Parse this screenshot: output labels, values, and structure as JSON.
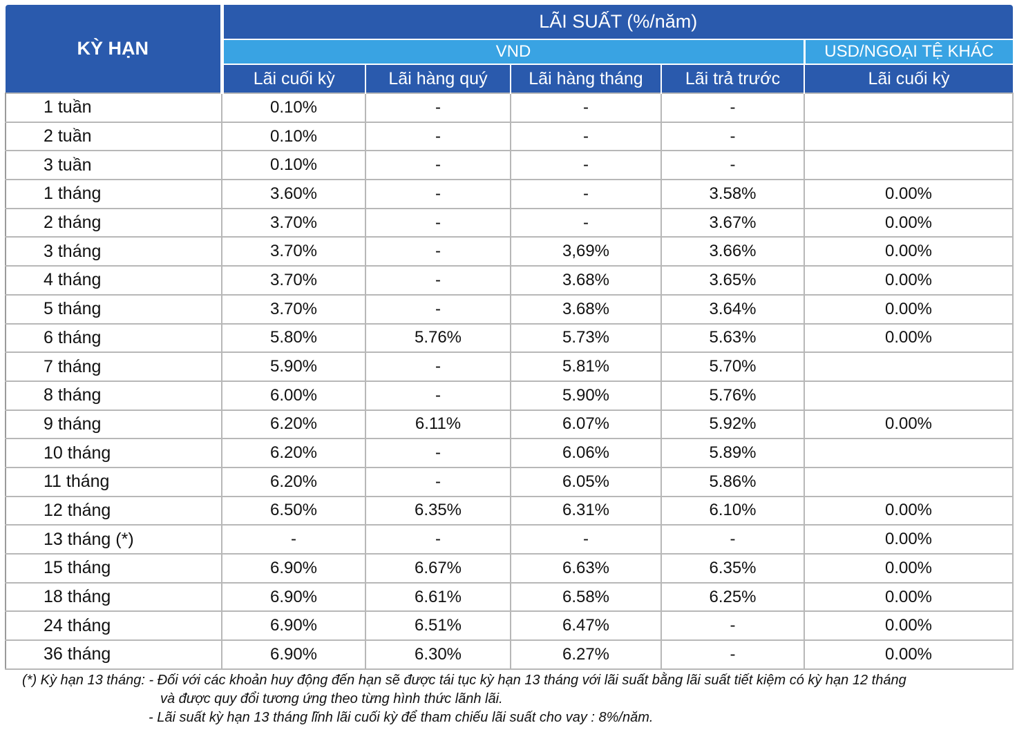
{
  "header": {
    "term_label": "KỲ HẠN",
    "rate_label": "LÃI SUẤT (%/năm)",
    "vnd_label": "VND",
    "usd_label": "USD/NGOẠI TỆ KHÁC",
    "columns": [
      "Lãi cuối kỳ",
      "Lãi hàng quý",
      "Lãi hàng tháng",
      "Lãi trả trước",
      "Lãi cuối kỳ"
    ]
  },
  "rows": [
    {
      "term": "1 tuần",
      "values": [
        "0.10%",
        "-",
        "-",
        "-",
        ""
      ]
    },
    {
      "term": "2 tuần",
      "values": [
        "0.10%",
        "-",
        "-",
        "-",
        ""
      ]
    },
    {
      "term": "3 tuần",
      "values": [
        "0.10%",
        "-",
        "-",
        "-",
        ""
      ]
    },
    {
      "term": "1 tháng",
      "values": [
        "3.60%",
        "-",
        "-",
        "3.58%",
        "0.00%"
      ]
    },
    {
      "term": "2 tháng",
      "values": [
        "3.70%",
        "-",
        "-",
        "3.67%",
        "0.00%"
      ]
    },
    {
      "term": "3 tháng",
      "values": [
        "3.70%",
        "-",
        "3,69%",
        "3.66%",
        "0.00%"
      ]
    },
    {
      "term": "4 tháng",
      "values": [
        "3.70%",
        "-",
        "3.68%",
        "3.65%",
        "0.00%"
      ]
    },
    {
      "term": "5 tháng",
      "values": [
        "3.70%",
        "-",
        "3.68%",
        "3.64%",
        "0.00%"
      ]
    },
    {
      "term": "6 tháng",
      "values": [
        "5.80%",
        "5.76%",
        "5.73%",
        "5.63%",
        "0.00%"
      ]
    },
    {
      "term": "7 tháng",
      "values": [
        "5.90%",
        "-",
        "5.81%",
        "5.70%",
        ""
      ]
    },
    {
      "term": "8 tháng",
      "values": [
        "6.00%",
        "-",
        "5.90%",
        "5.76%",
        ""
      ]
    },
    {
      "term": "9 tháng",
      "values": [
        "6.20%",
        "6.11%",
        "6.07%",
        "5.92%",
        "0.00%"
      ]
    },
    {
      "term": "10 tháng",
      "values": [
        "6.20%",
        "-",
        "6.06%",
        "5.89%",
        ""
      ]
    },
    {
      "term": "11 tháng",
      "values": [
        "6.20%",
        "-",
        "6.05%",
        "5.86%",
        ""
      ]
    },
    {
      "term": "12 tháng",
      "values": [
        "6.50%",
        "6.35%",
        "6.31%",
        "6.10%",
        "0.00%"
      ]
    },
    {
      "term": "13 tháng (*)",
      "values": [
        "-",
        "-",
        "-",
        "-",
        "0.00%"
      ]
    },
    {
      "term": "15 tháng",
      "values": [
        "6.90%",
        "6.67%",
        "6.63%",
        "6.35%",
        "0.00%"
      ]
    },
    {
      "term": "18 tháng",
      "values": [
        "6.90%",
        "6.61%",
        "6.58%",
        "6.25%",
        "0.00%"
      ]
    },
    {
      "term": "24 tháng",
      "values": [
        "6.90%",
        "6.51%",
        "6.47%",
        "-",
        "0.00%"
      ]
    },
    {
      "term": "36 tháng",
      "values": [
        "6.90%",
        "6.30%",
        "6.27%",
        "-",
        "0.00%"
      ]
    }
  ],
  "footnote": {
    "line1": "(*) Kỳ hạn 13 tháng: - Đối với các khoản huy động đến hạn sẽ được tái tục kỳ hạn 13 tháng với lãi suất bằng lãi suất tiết kiệm có kỳ hạn 12 tháng",
    "line2": "và được quy đổi tương ứng theo từng hình thức lãnh lãi.",
    "line3": "- Lãi suất kỳ hạn 13 tháng lĩnh lãi cuối kỳ để tham chiếu lãi suất cho vay : 8%/năm."
  }
}
